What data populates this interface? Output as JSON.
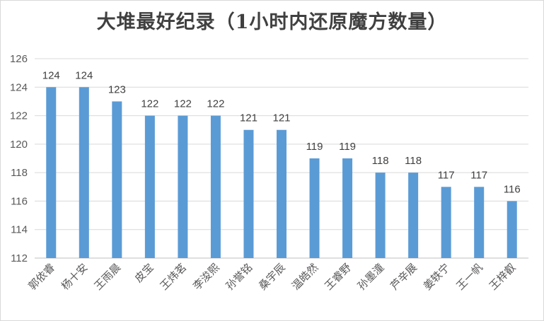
{
  "chart_data": {
    "type": "bar",
    "title": "大堆最好纪录（1小时内还原魔方数量）",
    "xlabel": "",
    "ylabel": "",
    "categories": [
      "郭依睿",
      "杨十安",
      "王雨晨",
      "皮宝",
      "王炜茗",
      "李浚熙",
      "孙誉铭",
      "桑宇辰",
      "温皓然",
      "王睿野",
      "孙墨潼",
      "芦辛展",
      "姜轶宁",
      "王一帆",
      "王梓叡"
    ],
    "values": [
      124,
      124,
      123,
      122,
      122,
      122,
      121,
      121,
      119,
      119,
      118,
      118,
      117,
      117,
      116
    ],
    "ylim": [
      112,
      126
    ],
    "yticks": [
      112,
      114,
      116,
      118,
      120,
      122,
      124,
      126
    ],
    "grid": true,
    "bar_color": "#5b9bd5",
    "grid_color": "#d9d9d9",
    "data_labels": true
  }
}
